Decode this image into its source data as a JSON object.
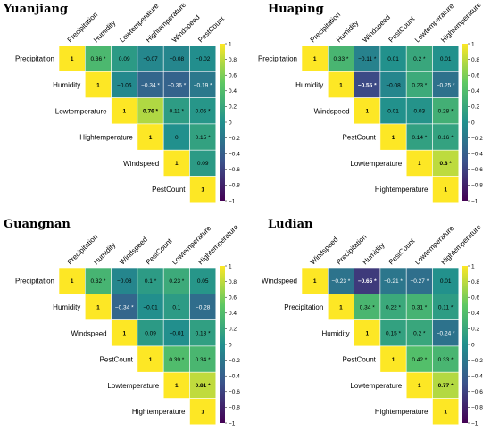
{
  "colorscale": {
    "min": -1,
    "max": 1,
    "stops": [
      "#440154",
      "#3b528b",
      "#21908d",
      "#5dc863",
      "#fde725"
    ],
    "ticks": [
      "1",
      "0.8",
      "0.6",
      "0.4",
      "0.2",
      "0",
      "−0.2",
      "−0.4",
      "−0.6",
      "−0.8",
      "−1"
    ]
  },
  "chart_data": [
    {
      "type": "heatmap",
      "title": "Yuanjiang",
      "variables": [
        "Precipitation",
        "Humidity",
        "Lowtemperature",
        "Hightemperature",
        "Windspeed",
        "PestCount"
      ],
      "values": [
        [
          1,
          0.36,
          0.09,
          -0.07,
          -0.08,
          -0.02
        ],
        [
          null,
          1,
          -0.06,
          -0.34,
          -0.36,
          -0.19
        ],
        [
          null,
          null,
          1,
          0.76,
          0.11,
          0.05
        ],
        [
          null,
          null,
          null,
          1,
          0,
          0.15
        ],
        [
          null,
          null,
          null,
          null,
          1,
          0.09
        ],
        [
          null,
          null,
          null,
          null,
          null,
          1
        ]
      ],
      "labels": [
        [
          "1",
          "0.36 *",
          "0.09",
          "−0.07",
          "−0.08",
          "−0.02"
        ],
        [
          "",
          "1",
          "−0.06",
          "−0.34 *",
          "−0.36 *",
          "−0.19 *"
        ],
        [
          "",
          "",
          "1",
          "0.76 *",
          "0.11 *",
          "0.05 *"
        ],
        [
          "",
          "",
          "",
          "1",
          "0",
          "0.15 *"
        ],
        [
          "",
          "",
          "",
          "",
          "1",
          "0.09"
        ],
        [
          "",
          "",
          "",
          "",
          "",
          "1"
        ]
      ]
    },
    {
      "type": "heatmap",
      "title": "Huaping",
      "variables": [
        "Precipitation",
        "Humidity",
        "Windspeed",
        "PestCount",
        "Lowtemperature",
        "Hightemperature"
      ],
      "values": [
        [
          1,
          0.33,
          -0.11,
          0.01,
          0.2,
          0.01
        ],
        [
          null,
          1,
          -0.55,
          -0.08,
          0.23,
          -0.25
        ],
        [
          null,
          null,
          1,
          0.01,
          0.03,
          0.28
        ],
        [
          null,
          null,
          null,
          1,
          0.14,
          0.16
        ],
        [
          null,
          null,
          null,
          null,
          1,
          0.8
        ],
        [
          null,
          null,
          null,
          null,
          null,
          1
        ]
      ],
      "labels": [
        [
          "1",
          "0.33 *",
          "−0.11 *",
          "0.01",
          "0.2 *",
          "0.01"
        ],
        [
          "",
          "1",
          "−0.55 *",
          "−0.08",
          "0.23 *",
          "−0.25 *"
        ],
        [
          "",
          "",
          "1",
          "0.01",
          "0.03",
          "0.28 *"
        ],
        [
          "",
          "",
          "",
          "1",
          "0.14 *",
          "0.16 *"
        ],
        [
          "",
          "",
          "",
          "",
          "1",
          "0.8 *"
        ],
        [
          "",
          "",
          "",
          "",
          "",
          "1"
        ]
      ]
    },
    {
      "type": "heatmap",
      "title": "Guangnan",
      "variables": [
        "Precipitation",
        "Humidity",
        "Windspeed",
        "PestCount",
        "Lowtemperature",
        "Hightemperature"
      ],
      "values": [
        [
          1,
          0.32,
          -0.08,
          0.1,
          0.23,
          0.05
        ],
        [
          null,
          1,
          -0.34,
          -0.01,
          0.1,
          -0.28
        ],
        [
          null,
          null,
          1,
          0.09,
          -0.01,
          0.13
        ],
        [
          null,
          null,
          null,
          1,
          0.39,
          0.34
        ],
        [
          null,
          null,
          null,
          null,
          1,
          0.81
        ],
        [
          null,
          null,
          null,
          null,
          null,
          1
        ]
      ],
      "labels": [
        [
          "1",
          "0.32 *",
          "−0.08",
          "0.1 *",
          "0.23 *",
          "0.05"
        ],
        [
          "",
          "1",
          "−0.34 *",
          "−0.01",
          "0.1",
          "−0.28"
        ],
        [
          "",
          "",
          "1",
          "0.09",
          "−0.01",
          "0.13 *"
        ],
        [
          "",
          "",
          "",
          "1",
          "0.39 *",
          "0.34 *"
        ],
        [
          "",
          "",
          "",
          "",
          "1",
          "0.81 *"
        ],
        [
          "",
          "",
          "",
          "",
          "",
          "1"
        ]
      ]
    },
    {
      "type": "heatmap",
      "title": "Ludian",
      "variables": [
        "Windspeed",
        "Precipitation",
        "Humidity",
        "PestCount",
        "Lowtemperature",
        "Hightemperature"
      ],
      "values": [
        [
          1,
          -0.23,
          -0.65,
          -0.21,
          -0.27,
          0.01
        ],
        [
          null,
          1,
          0.34,
          0.22,
          0.31,
          0.11
        ],
        [
          null,
          null,
          1,
          0.15,
          0.2,
          -0.24
        ],
        [
          null,
          null,
          null,
          1,
          0.42,
          0.33
        ],
        [
          null,
          null,
          null,
          null,
          1,
          0.77
        ],
        [
          null,
          null,
          null,
          null,
          null,
          1
        ]
      ],
      "labels": [
        [
          "1",
          "−0.23 *",
          "−0.65 *",
          "−0.21 *",
          "−0.27 *",
          "0.01"
        ],
        [
          "",
          "1",
          "0.34 *",
          "0.22 *",
          "0.31 *",
          "0.11 *"
        ],
        [
          "",
          "",
          "1",
          "0.15 *",
          "0.2 *",
          "−0.24 *"
        ],
        [
          "",
          "",
          "",
          "1",
          "0.42 *",
          "0.33 *"
        ],
        [
          "",
          "",
          "",
          "",
          "1",
          "0.77 *"
        ],
        [
          "",
          "",
          "",
          "",
          "",
          "1"
        ]
      ]
    }
  ]
}
